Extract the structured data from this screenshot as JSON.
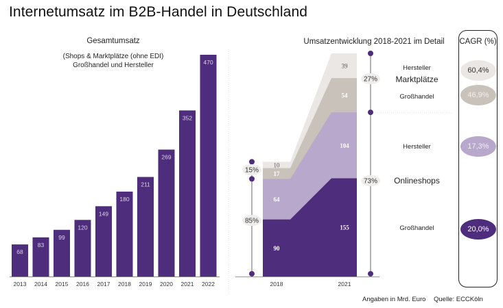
{
  "title": "Internetumsatz im B2B-Handel in Deutschland",
  "colors": {
    "primary": "#4e2d7c",
    "light_purple": "#b8a8cb",
    "taupe": "#c9c2bb",
    "light_gray": "#ebe7e4",
    "dot": "#4e2d7c"
  },
  "chart_data": [
    {
      "type": "bar",
      "title": "Gesamtumsatz",
      "subtitle": [
        "(Shops & Marktplätze (ohne EDI)",
        "Großhandel und Hersteller"
      ],
      "categories": [
        "2013",
        "2014",
        "2015",
        "2016",
        "2017",
        "2018",
        "2019",
        "2020",
        "2021",
        "2022"
      ],
      "values": [
        68,
        83,
        99,
        120,
        149,
        180,
        211,
        269,
        352,
        470
      ],
      "xlabel": "",
      "ylabel": "",
      "ylim": [
        0,
        470
      ],
      "grid": false
    },
    {
      "type": "area",
      "title": "Umsatzentwicklung 2018-2021 im Detail",
      "categories": [
        "2018",
        "2021"
      ],
      "series": [
        {
          "name": "Onlineshops Großhandel",
          "values": [
            90,
            155
          ]
        },
        {
          "name": "Onlineshops Hersteller",
          "values": [
            64,
            104
          ]
        },
        {
          "name": "Marktplätze Großhandel",
          "values": [
            17,
            54
          ]
        },
        {
          "name": "Marktplätze Hersteller",
          "values": [
            10,
            39
          ]
        }
      ],
      "shares": {
        "2018": {
          "Marktplätze": "15%",
          "Onlineshops": "85%"
        },
        "2021": {
          "Marktplätze": "27%",
          "Onlineshops": "73%"
        }
      },
      "group_labels": {
        "marktplaetze": "Marktplätze",
        "onlineshops": "Onlineshops",
        "hersteller": "Hersteller",
        "grosshandel": "Großhandel"
      },
      "cagr_title": "CAGR (%)",
      "cagr": [
        {
          "name": "Marktplätze Hersteller",
          "value": "60,4%"
        },
        {
          "name": "Marktplätze Großhandel",
          "value": "46,9%"
        },
        {
          "name": "Onlineshops Hersteller",
          "value": "17,3%"
        },
        {
          "name": "Onlineshops Großhandel",
          "value": "20,0%"
        }
      ]
    }
  ],
  "footer": {
    "unit": "Angaben in Mrd. Euro",
    "source": "Quelle: ECCKöln"
  }
}
